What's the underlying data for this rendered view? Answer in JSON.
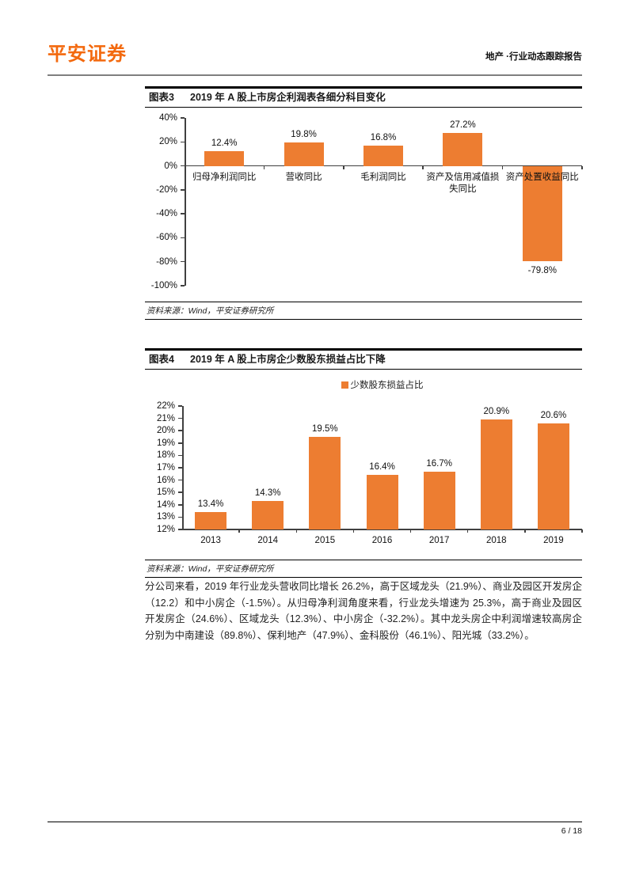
{
  "header": {
    "logo_text": "平安证券",
    "report_type": "地产 ·行业动态跟踪报告"
  },
  "figure3": {
    "label": "图表3",
    "title": "2019 年 A 股上市房企利润表各细分科目变化",
    "source": "资料来源：Wind，平安证券研究所"
  },
  "figure4": {
    "label": "图表4",
    "title": "2019 年 A 股上市房企少数股东损益占比下降",
    "source": "资料来源：Wind，平安证券研究所"
  },
  "body_paragraph": "分公司来看，2019 年行业龙头营收同比增长 26.2%，高于区域龙头（21.9%）、商业及园区开发房企（12.2）和中小房企（-1.5%）。从归母净利润角度来看，行业龙头增速为 25.3%，高于商业及园区开发房企（24.6%）、区域龙头（12.3%）、中小房企（-32.2%）。其中龙头房企中利润增速较高房企分别为中南建设（89.8%）、保利地产（47.9%）、金科股份（46.1%）、阳光城（33.2%）。",
  "footer": {
    "page_number": "6 / 18"
  },
  "colors": {
    "brand_orange": "#F3690E",
    "bar_orange": "#ED7D31",
    "axis_gray": "#404040",
    "header_rule_gray": "#7F7F7F"
  },
  "chart_data": [
    {
      "type": "bar",
      "title": "2019 年 A 股上市房企利润表各细分科目变化",
      "categories": [
        "归母净利润同比",
        "营收同比",
        "毛利润同比",
        "资产及信用减值损失同比",
        "资产处置收益同比"
      ],
      "values": [
        12.4,
        19.8,
        16.8,
        27.2,
        -79.8
      ],
      "labels": [
        "12.4%",
        "19.8%",
        "16.8%",
        "27.2%",
        "-79.8%"
      ],
      "xlabel": "",
      "ylabel": "",
      "ylim": [
        -100,
        40
      ],
      "ytick_step": 20,
      "ytick_labels": [
        "40%",
        "20%",
        "0%",
        "-20%",
        "-40%",
        "-60%",
        "-80%",
        "-100%"
      ],
      "grid": false,
      "legend": null,
      "legend_position": "none",
      "bar_color": "#ED7D31"
    },
    {
      "type": "bar",
      "title": "2019 年 A 股上市房企少数股东损益占比下降",
      "categories": [
        "2013",
        "2014",
        "2015",
        "2016",
        "2017",
        "2018",
        "2019"
      ],
      "values": [
        13.4,
        14.3,
        19.5,
        16.4,
        16.7,
        20.9,
        20.6
      ],
      "labels": [
        "13.4%",
        "14.3%",
        "19.5%",
        "16.4%",
        "16.7%",
        "20.9%",
        "20.6%"
      ],
      "xlabel": "",
      "ylabel": "",
      "ylim": [
        12,
        22
      ],
      "ytick_step": 1,
      "ytick_labels": [
        "22%",
        "21%",
        "20%",
        "19%",
        "18%",
        "17%",
        "16%",
        "15%",
        "14%",
        "13%",
        "12%"
      ],
      "grid": false,
      "legend": [
        "少数股东损益占比"
      ],
      "legend_position": "top",
      "bar_color": "#ED7D31"
    }
  ]
}
